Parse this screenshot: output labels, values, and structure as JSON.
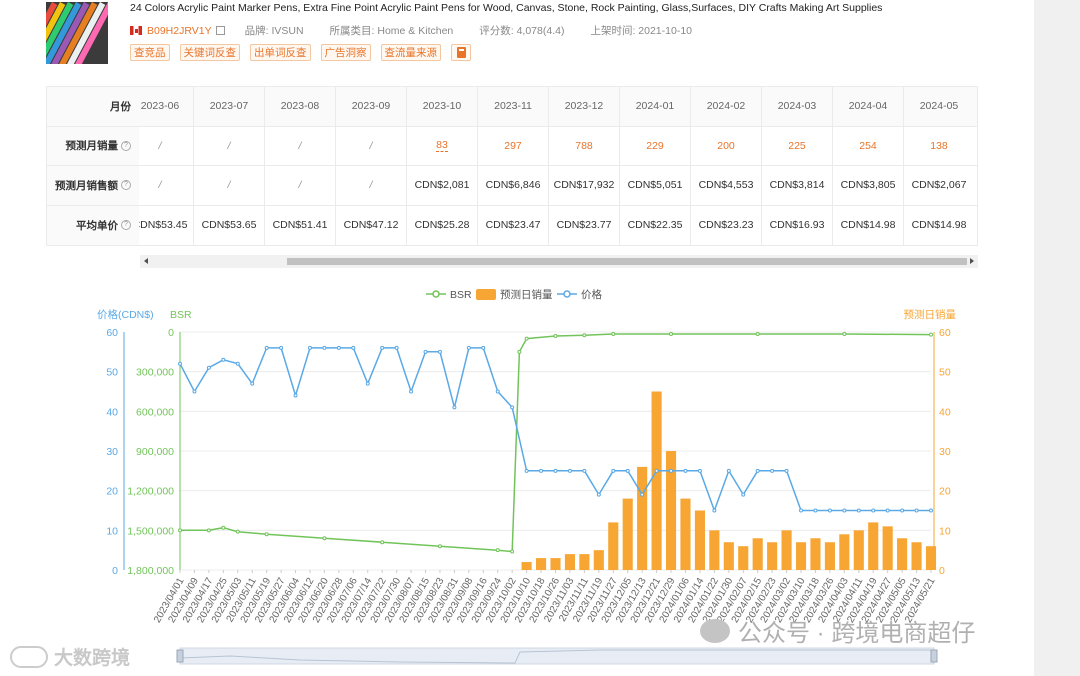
{
  "product": {
    "title": "24 Colors Acrylic Paint Marker Pens, Extra Fine Point Acrylic Paint Pens for Wood, Canvas, Stone, Rock Painting, Glass,Surfaces, DIY Crafts Making Art Supplies",
    "asin": "B09H2JRV1Y",
    "brand": "品牌: IVSUN",
    "category": "所属类目: Home & Kitchen",
    "rating": "评分数: 4,078(4.4)",
    "listed": "上架时间: 2021-10-10",
    "tags": [
      "查竞品",
      "关键词反查",
      "出单词反查",
      "广告洞察",
      "查流量来源"
    ]
  },
  "table": {
    "row_labels": [
      "月份",
      "预测月销量",
      "预测月销售额",
      "平均单价"
    ],
    "months": [
      "2023-06",
      "2023-07",
      "2023-08",
      "2023-09",
      "2023-10",
      "2023-11",
      "2023-12",
      "2024-01",
      "2024-02",
      "2024-03",
      "2024-04",
      "2024-05"
    ],
    "units": [
      "/",
      "/",
      "/",
      "/",
      "83",
      "297",
      "788",
      "229",
      "200",
      "225",
      "254",
      "138"
    ],
    "revenue": [
      "/",
      "/",
      "/",
      "/",
      "CDN$2,081",
      "CDN$6,846",
      "CDN$17,932",
      "CDN$5,051",
      "CDN$4,553",
      "CDN$3,814",
      "CDN$3,805",
      "CDN$2,067"
    ],
    "price": [
      "CDN$53.45",
      "CDN$53.65",
      "CDN$51.41",
      "CDN$47.12",
      "CDN$25.28",
      "CDN$23.47",
      "CDN$23.77",
      "CDN$22.35",
      "CDN$23.23",
      "CDN$16.93",
      "CDN$14.98",
      "CDN$14.98"
    ]
  },
  "chart": {
    "legend": [
      "BSR",
      "预测日销量",
      "价格"
    ],
    "left_axis1_label": "价格(CDN$)",
    "left_axis2_label": "BSR",
    "right_axis_label": "预测日销量",
    "price_ticks": [
      "60",
      "50",
      "40",
      "30",
      "20",
      "10",
      "0"
    ],
    "bsr_ticks": [
      "0",
      "300,000",
      "600,000",
      "900,000",
      "1,200,000",
      "1,500,000",
      "1,800,000"
    ],
    "sales_ticks": [
      "60",
      "50",
      "40",
      "30",
      "20",
      "10",
      "0"
    ],
    "colors": {
      "bsr": "#72c45a",
      "sales": "#f7a533",
      "price": "#5aa9e6"
    }
  },
  "chart_data": {
    "type": "line",
    "x_labels": [
      "2023/04/01",
      "2023/04/09",
      "2023/04/17",
      "2023/04/25",
      "2023/05/03",
      "2023/05/11",
      "2023/05/19",
      "2023/05/27",
      "2023/06/04",
      "2023/06/12",
      "2023/06/20",
      "2023/06/28",
      "2023/07/06",
      "2023/07/14",
      "2023/07/22",
      "2023/07/30",
      "2023/08/07",
      "2023/08/15",
      "2023/08/23",
      "2023/08/31",
      "2023/09/08",
      "2023/09/16",
      "2023/09/24",
      "2023/10/02",
      "2023/10/10",
      "2023/10/18",
      "2023/10/26",
      "2023/11/03",
      "2023/11/11",
      "2023/11/19",
      "2023/11/27",
      "2023/12/05",
      "2023/12/13",
      "2023/12/21",
      "2023/12/29",
      "2024/01/06",
      "2024/01/14",
      "2024/01/22",
      "2024/01/30",
      "2024/02/07",
      "2024/02/15",
      "2024/02/23",
      "2024/03/02",
      "2024/03/10",
      "2024/03/18",
      "2024/03/26",
      "2024/04/03",
      "2024/04/11",
      "2024/04/19",
      "2024/04/27",
      "2024/05/05",
      "2024/05/13",
      "2024/05/21"
    ],
    "series": [
      {
        "name": "价格",
        "axis": "价格(CDN$)",
        "points": [
          [
            0,
            52
          ],
          [
            1,
            45
          ],
          [
            2,
            51
          ],
          [
            3,
            53
          ],
          [
            4,
            52
          ],
          [
            5,
            47
          ],
          [
            6,
            56
          ],
          [
            7,
            56
          ],
          [
            8,
            44
          ],
          [
            9,
            56
          ],
          [
            10,
            56
          ],
          [
            11,
            56
          ],
          [
            12,
            56
          ],
          [
            13,
            47
          ],
          [
            14,
            56
          ],
          [
            15,
            56
          ],
          [
            16,
            45
          ],
          [
            17,
            55
          ],
          [
            18,
            55
          ],
          [
            19,
            41
          ],
          [
            20,
            56
          ],
          [
            21,
            56
          ],
          [
            22,
            45
          ],
          [
            23,
            41
          ],
          [
            24,
            25
          ],
          [
            25,
            25
          ],
          [
            26,
            25
          ],
          [
            27,
            25
          ],
          [
            28,
            25
          ],
          [
            29,
            19
          ],
          [
            30,
            25
          ],
          [
            31,
            25
          ],
          [
            32,
            19
          ],
          [
            33,
            25
          ],
          [
            34,
            25
          ],
          [
            35,
            25
          ],
          [
            36,
            25
          ],
          [
            37,
            15
          ],
          [
            38,
            25
          ],
          [
            39,
            19
          ],
          [
            40,
            25
          ],
          [
            41,
            25
          ],
          [
            42,
            25
          ],
          [
            43,
            15
          ],
          [
            44,
            15
          ],
          [
            45,
            15
          ],
          [
            46,
            15
          ],
          [
            47,
            15
          ],
          [
            48,
            15
          ],
          [
            49,
            15
          ],
          [
            50,
            15
          ],
          [
            51,
            15
          ],
          [
            52,
            15
          ]
        ]
      },
      {
        "name": "BSR",
        "axis": "BSR",
        "points": [
          [
            0,
            1500000
          ],
          [
            2,
            1500000
          ],
          [
            3,
            1480000
          ],
          [
            4,
            1510000
          ],
          [
            6,
            1530000
          ],
          [
            10,
            1560000
          ],
          [
            14,
            1590000
          ],
          [
            18,
            1620000
          ],
          [
            22,
            1650000
          ],
          [
            23,
            1660000
          ],
          [
            23.5,
            150000
          ],
          [
            24,
            50000
          ],
          [
            26,
            30000
          ],
          [
            28,
            25000
          ],
          [
            30,
            15000
          ],
          [
            34,
            15000
          ],
          [
            40,
            15000
          ],
          [
            46,
            15000
          ],
          [
            52,
            20000
          ]
        ]
      },
      {
        "name": "预测日销量",
        "axis": "预测日销量",
        "type": "bar",
        "points": [
          [
            23,
            0
          ],
          [
            24,
            2
          ],
          [
            25,
            3
          ],
          [
            26,
            3
          ],
          [
            27,
            4
          ],
          [
            28,
            4
          ],
          [
            29,
            5
          ],
          [
            30,
            12
          ],
          [
            31,
            18
          ],
          [
            32,
            26
          ],
          [
            33,
            45
          ],
          [
            34,
            30
          ],
          [
            35,
            18
          ],
          [
            36,
            15
          ],
          [
            37,
            10
          ],
          [
            38,
            7
          ],
          [
            39,
            6
          ],
          [
            40,
            8
          ],
          [
            41,
            7
          ],
          [
            42,
            10
          ],
          [
            43,
            7
          ],
          [
            44,
            8
          ],
          [
            45,
            7
          ],
          [
            46,
            9
          ],
          [
            47,
            10
          ],
          [
            48,
            12
          ],
          [
            49,
            11
          ],
          [
            50,
            8
          ],
          [
            51,
            7
          ],
          [
            52,
            6
          ]
        ]
      }
    ],
    "y_ranges": {
      "price": [
        0,
        60
      ],
      "bsr": [
        0,
        1800000
      ],
      "sales": [
        0,
        60
      ]
    }
  },
  "watermarks": {
    "left": "大数跨境",
    "right": "公众号 · 跨境电商超仔"
  }
}
